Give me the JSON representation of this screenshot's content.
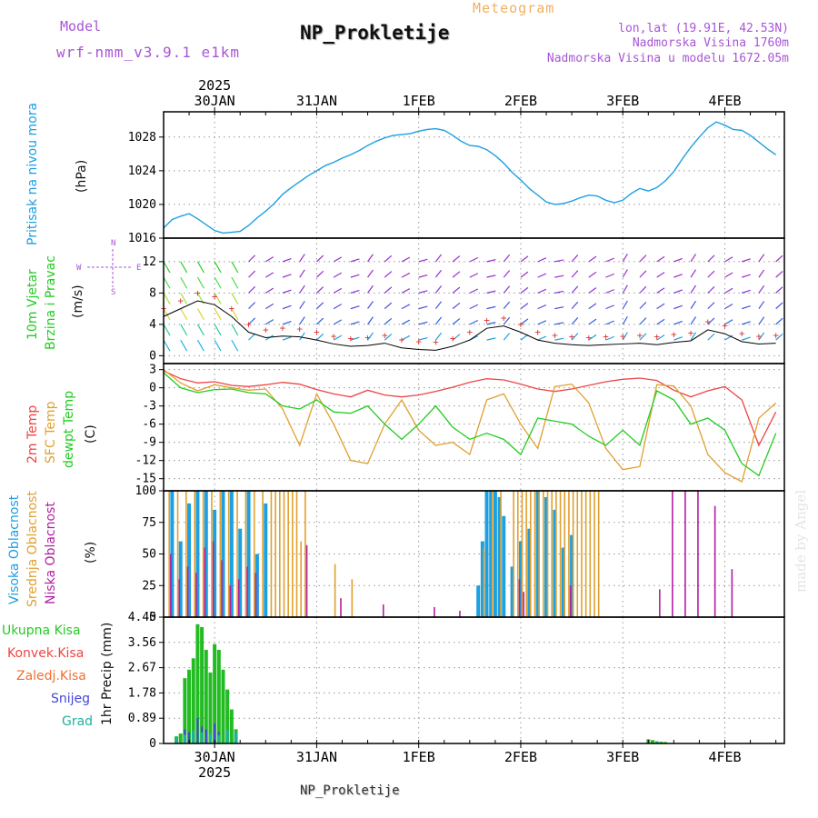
{
  "header": {
    "left_label": "Model",
    "left_value": "wrf-nmm_v3.9.1 e1km",
    "title": "NP_Prokletije",
    "meteogram_label": "Meteogram",
    "location": "lon,lat (19.91E, 42.53N)",
    "altitude": "Nadmorska Visina 1760m",
    "model_altitude": "Nadmorska Visina u modelu 1672.05m"
  },
  "footer": {
    "station": "NP_Prokletije",
    "watermark": "made by Angel"
  },
  "time_axis": {
    "year": "2025",
    "labels": [
      "30JAN",
      "31JAN",
      "1FEB",
      "2FEB",
      "3FEB",
      "4FEB"
    ]
  },
  "colors": {
    "pressure": "#1ca0e0",
    "t2m": "#ee4444",
    "sfc": "#e0a030",
    "dewpt": "#22cc22",
    "high_cloud": "#1ca0e0",
    "mid_cloud": "#e0a030",
    "low_cloud": "#b020a0",
    "total_precip": "#22bb22",
    "conv_precip": "#ee4444",
    "frozen_precip": "#f07030",
    "snow": "#4444dd",
    "graupel": "#20b0a0"
  },
  "chart_data": [
    {
      "type": "line",
      "panel": "pressure",
      "title": "Pritisak na nivou mora",
      "ylabel": "(hPa)",
      "yticks": [
        "1016",
        "1020",
        "1024",
        "1028"
      ],
      "ylim": [
        1016,
        1031
      ],
      "series": [
        {
          "name": "Pritisak na nivou mora",
          "x_hours": [
            0,
            2,
            4,
            6,
            8,
            10,
            12,
            14,
            16,
            18,
            20,
            22,
            24,
            26,
            28,
            30,
            32,
            34,
            36,
            38,
            40,
            42,
            44,
            46,
            48,
            50,
            52,
            54,
            56,
            58,
            60,
            62,
            64,
            66,
            68,
            70,
            72,
            74,
            76,
            78,
            80,
            82,
            84,
            86,
            88,
            90,
            92,
            94,
            96,
            98,
            100,
            102,
            104,
            106,
            108,
            110,
            112,
            114,
            116,
            118,
            120,
            122,
            124,
            126,
            128,
            130,
            132,
            134,
            136,
            138,
            140,
            142,
            144
          ],
          "values": [
            1017.2,
            1018.2,
            1018.6,
            1018.9,
            1018.3,
            1017.6,
            1016.9,
            1016.6,
            1016.7,
            1016.8,
            1017.5,
            1018.4,
            1019.2,
            1020.1,
            1021.2,
            1022.0,
            1022.7,
            1023.4,
            1024.0,
            1024.6,
            1025.0,
            1025.5,
            1025.9,
            1026.4,
            1027.0,
            1027.5,
            1027.9,
            1028.2,
            1028.3,
            1028.4,
            1028.7,
            1028.9,
            1029.0,
            1028.8,
            1028.2,
            1027.5,
            1027.0,
            1026.9,
            1026.5,
            1025.8,
            1024.9,
            1023.8,
            1022.9,
            1021.9,
            1021.1,
            1020.3,
            1020.0,
            1020.1,
            1020.4,
            1020.8,
            1021.1,
            1021.0,
            1020.5,
            1020.2,
            1020.5,
            1021.3,
            1021.9,
            1021.6,
            1022.0,
            1022.8,
            1023.9,
            1025.4,
            1026.8,
            1028.0,
            1029.1,
            1029.8,
            1029.4,
            1028.9,
            1028.8,
            1028.2,
            1027.4,
            1026.6,
            1025.9
          ]
        }
      ]
    },
    {
      "type": "barbs",
      "panel": "wind",
      "title": "10m Vjetar Brzina i Pravac",
      "ylabel": "(m/s)",
      "yticks": [
        "0",
        "4",
        "8",
        "12"
      ],
      "ylim": [
        -1,
        15
      ],
      "compass": [
        "N",
        "S",
        "W",
        "E"
      ],
      "series": [
        {
          "name": "10m Vjetar",
          "x_hours": [
            0,
            4,
            8,
            12,
            16,
            20,
            24,
            28,
            32,
            36,
            40,
            44,
            48,
            52,
            56,
            60,
            64,
            68,
            72,
            76,
            80,
            84,
            88,
            92,
            96,
            100,
            104,
            108,
            112,
            116,
            120,
            124,
            128,
            132,
            136,
            140,
            144
          ],
          "values": [
            5.0,
            6.0,
            7.0,
            6.5,
            5.0,
            3.0,
            2.3,
            2.5,
            2.4,
            2.0,
            1.5,
            1.2,
            1.3,
            1.6,
            1.0,
            0.8,
            0.7,
            1.2,
            2.0,
            3.5,
            3.8,
            3.0,
            2.0,
            1.6,
            1.4,
            1.3,
            1.4,
            1.5,
            1.6,
            1.4,
            1.7,
            1.9,
            3.3,
            2.8,
            1.8,
            1.5,
            1.6
          ]
        }
      ]
    },
    {
      "type": "line",
      "panel": "temperature",
      "ylabel": "(C)",
      "yticks": [
        "3",
        "0",
        "-3",
        "-6",
        "-9",
        "-12",
        "-15"
      ],
      "ylim": [
        -17,
        4
      ],
      "series": [
        {
          "name": "2m Temp",
          "x_hours": [
            0,
            4,
            8,
            12,
            16,
            20,
            24,
            28,
            32,
            36,
            40,
            44,
            48,
            52,
            56,
            60,
            64,
            68,
            72,
            76,
            80,
            84,
            88,
            92,
            96,
            100,
            104,
            108,
            112,
            116,
            120,
            124,
            128,
            132,
            136,
            140,
            144
          ],
          "values": [
            2.8,
            1.5,
            0.8,
            1.0,
            0.4,
            0.2,
            0.5,
            0.9,
            0.6,
            -0.3,
            -1.0,
            -1.5,
            -0.4,
            -1.2,
            -1.5,
            -1.2,
            -0.6,
            0.1,
            0.9,
            1.5,
            1.3,
            0.6,
            -0.2,
            -0.6,
            -0.2,
            0.4,
            1.0,
            1.4,
            1.6,
            1.2,
            -0.4,
            -1.5,
            -0.5,
            0.2,
            -2.0,
            -9.5,
            -4.0
          ]
        },
        {
          "name": "SFC Temp",
          "x_hours": [
            0,
            4,
            8,
            12,
            16,
            20,
            24,
            28,
            32,
            36,
            40,
            44,
            48,
            52,
            56,
            60,
            64,
            68,
            72,
            76,
            80,
            84,
            88,
            92,
            96,
            100,
            104,
            108,
            112,
            116,
            120,
            124,
            128,
            132,
            136,
            140,
            144
          ],
          "values": [
            3.0,
            0.8,
            -0.5,
            0.5,
            0.0,
            -0.4,
            -0.2,
            -3.5,
            -9.5,
            -1.0,
            -6.0,
            -12.0,
            -12.5,
            -6.0,
            -2.0,
            -7.0,
            -9.5,
            -9.0,
            -11.0,
            -2.0,
            -1.0,
            -6.0,
            -10.0,
            0.2,
            0.6,
            -2.5,
            -10.0,
            -13.5,
            -13.0,
            0.5,
            0.3,
            -3.0,
            -11.0,
            -14.0,
            -15.5,
            -5.0,
            -2.5
          ]
        },
        {
          "name": "dewpt Temp",
          "x_hours": [
            0,
            4,
            8,
            12,
            16,
            20,
            24,
            28,
            32,
            36,
            40,
            44,
            48,
            52,
            56,
            60,
            64,
            68,
            72,
            76,
            80,
            84,
            88,
            92,
            96,
            100,
            104,
            108,
            112,
            116,
            120,
            124,
            128,
            132,
            136,
            140,
            144
          ],
          "values": [
            2.5,
            0.0,
            -0.8,
            -0.3,
            -0.2,
            -0.8,
            -1.0,
            -3.0,
            -3.5,
            -2.0,
            -4.0,
            -4.2,
            -3.0,
            -6.0,
            -8.5,
            -6.0,
            -3.0,
            -6.5,
            -8.5,
            -7.5,
            -8.5,
            -11.0,
            -5.0,
            -5.5,
            -6.0,
            -8.0,
            -9.5,
            -7.0,
            -9.5,
            -0.5,
            -2.0,
            -6.0,
            -5.0,
            -7.0,
            -12.5,
            -14.5,
            -7.5
          ]
        }
      ]
    },
    {
      "type": "bar",
      "panel": "clouds",
      "ylabel": "(%)",
      "yticks": [
        "0",
        "25",
        "50",
        "75",
        "100"
      ],
      "ylim": [
        0,
        100
      ],
      "series": [
        {
          "name": "Visoka Oblacnost",
          "x_hours": [
            2,
            4,
            6,
            8,
            10,
            12,
            14,
            16,
            18,
            20,
            22,
            24,
            74,
            75,
            76,
            77,
            78,
            79,
            80,
            82,
            84,
            86,
            88,
            90,
            92,
            94,
            96
          ],
          "values": [
            100,
            60,
            90,
            100,
            100,
            85,
            100,
            100,
            70,
            100,
            50,
            90,
            25,
            60,
            100,
            100,
            100,
            95,
            80,
            40,
            60,
            70,
            100,
            95,
            85,
            55,
            65
          ]
        },
        {
          "name": "Srednja Oblacnost",
          "x_hours": [
            1,
            3,
            5,
            7,
            9,
            11,
            13,
            15,
            17,
            19,
            21,
            23,
            25,
            26,
            27,
            28,
            29,
            30,
            31,
            32,
            33,
            40,
            44,
            61,
            75,
            77,
            79,
            82,
            83,
            84,
            85,
            86,
            87,
            88,
            89,
            90,
            91,
            92,
            93,
            94,
            95,
            96,
            97,
            98,
            99,
            100,
            101,
            102
          ],
          "values": [
            100,
            100,
            100,
            100,
            100,
            100,
            100,
            100,
            100,
            100,
            100,
            100,
            100,
            100,
            100,
            100,
            100,
            100,
            100,
            60,
            100,
            42,
            30,
            0,
            55,
            100,
            100,
            100,
            100,
            100,
            100,
            100,
            100,
            100,
            100,
            100,
            100,
            100,
            100,
            100,
            100,
            100,
            100,
            100,
            100,
            100,
            100,
            100
          ]
        },
        {
          "name": "Niska Oblacnost",
          "x_hours": [
            2,
            4,
            6,
            8,
            10,
            12,
            14,
            16,
            18,
            20,
            22,
            34,
            42,
            52,
            64,
            70,
            84,
            85,
            96,
            117,
            120,
            123,
            126,
            130,
            134
          ],
          "values": [
            50,
            30,
            40,
            35,
            55,
            60,
            45,
            25,
            30,
            40,
            35,
            57,
            15,
            10,
            8,
            5,
            30,
            20,
            25,
            22,
            100,
            100,
            100,
            88,
            38
          ]
        }
      ]
    },
    {
      "type": "bar",
      "panel": "precipitation",
      "ylabel": "1hr Precip (mm)",
      "yticks": [
        "0",
        "0.89",
        "1.78",
        "2.67",
        "3.56",
        "4.45"
      ],
      "ylim": [
        0,
        4.45
      ],
      "series": [
        {
          "name": "Ukupna Kisa",
          "x_hours": [
            3,
            4,
            5,
            6,
            7,
            8,
            9,
            10,
            11,
            12,
            13,
            14,
            15,
            16,
            17,
            114,
            115,
            116,
            117,
            118
          ],
          "values": [
            0.25,
            0.35,
            2.3,
            2.6,
            3.0,
            4.2,
            4.1,
            3.3,
            2.5,
            3.5,
            3.3,
            2.6,
            1.9,
            1.2,
            0.5,
            0.15,
            0.12,
            0.08,
            0.06,
            0.05
          ]
        },
        {
          "name": "Konvek.Kisa",
          "x_hours": [],
          "values": []
        },
        {
          "name": "Zaledj.Kisa",
          "x_hours": [],
          "values": []
        },
        {
          "name": "Snijeg",
          "x_hours": [
            5,
            6,
            8,
            9,
            10,
            12,
            13
          ],
          "values": [
            0.5,
            0.4,
            0.9,
            0.6,
            0.5,
            0.7,
            0.4
          ]
        },
        {
          "name": "Grad",
          "x_hours": [
            3,
            5,
            7,
            9,
            11,
            13,
            15,
            17,
            114,
            116
          ],
          "values": [
            0.2,
            0.3,
            0.45,
            0.4,
            0.35,
            0.3,
            0.5,
            0.4,
            0.12,
            0.08
          ]
        }
      ]
    }
  ]
}
